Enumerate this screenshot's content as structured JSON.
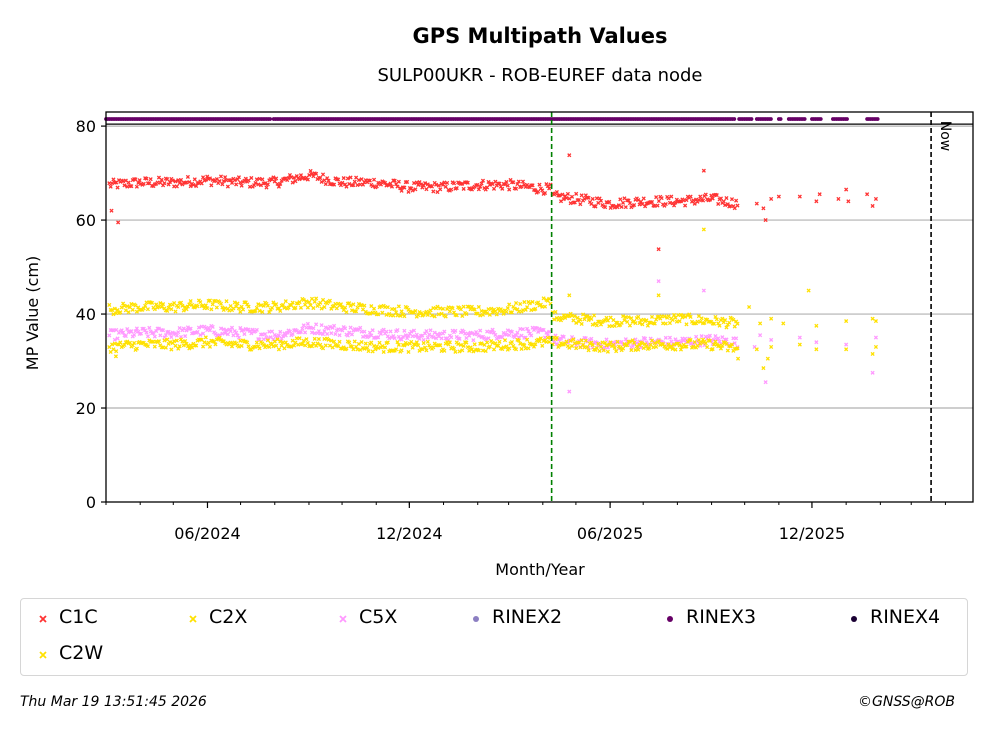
{
  "chart_data": {
    "type": "scatter",
    "title": "GPS Multipath Values",
    "subtitle": "SULP00UKR - ROB-EUREF data node",
    "xlabel": "Month/Year",
    "ylabel": "MP Value (cm)",
    "xlim": [
      "2024-03-01",
      "2026-04-26"
    ],
    "ylim": [
      0,
      83
    ],
    "yticks": [
      0,
      20,
      40,
      60,
      80
    ],
    "xticks": [
      {
        "date": "2024-06-01",
        "label": "06/2024"
      },
      {
        "date": "2024-12-01",
        "label": "12/2024"
      },
      {
        "date": "2025-06-01",
        "label": "06/2025"
      },
      {
        "date": "2025-12-01",
        "label": "12/2025"
      }
    ],
    "grid": "horizontal",
    "legend_position": "bottom",
    "annotations": {
      "now_label": "Now",
      "now_date": "2026-03-19",
      "change_date": "2025-04-09",
      "change_color": "#008000",
      "rinex_band_y": 81.5
    },
    "series": [
      {
        "name": "C1C",
        "color": "#ff3333",
        "marker": "x",
        "segments": [
          {
            "x": [
              "2024-03-04",
              "2024-04-01",
              "2024-05-01",
              "2024-06-01",
              "2024-07-01",
              "2024-08-01",
              "2024-09-01",
              "2024-10-01",
              "2024-11-01",
              "2024-12-01",
              "2025-01-01",
              "2025-02-01",
              "2025-03-01",
              "2025-04-08"
            ],
            "y": [
              67.5,
              68.0,
              68.0,
              68.5,
              68.0,
              68.0,
              69.5,
              68.0,
              68.0,
              67.0,
              67.0,
              67.5,
              67.5,
              66.5
            ]
          },
          {
            "x": [
              "2025-04-10",
              "2025-05-01",
              "2025-06-01",
              "2025-07-01",
              "2025-08-01",
              "2025-09-01",
              "2025-09-25"
            ],
            "y": [
              65.0,
              64.5,
              63.5,
              64.0,
              64.0,
              64.5,
              63.5
            ]
          }
        ],
        "outliers": [
          {
            "x": "2024-03-06",
            "y": 62.0
          },
          {
            "x": "2024-03-12",
            "y": 59.5
          },
          {
            "x": "2025-04-25",
            "y": 73.8
          },
          {
            "x": "2025-07-15",
            "y": 53.8
          },
          {
            "x": "2025-08-25",
            "y": 70.5
          },
          {
            "x": "2025-10-20",
            "y": 60.0
          }
        ],
        "late_points": [
          {
            "x": "2025-10-12",
            "y": 63.5
          },
          {
            "x": "2025-10-18",
            "y": 62.5
          },
          {
            "x": "2025-10-25",
            "y": 64.5
          },
          {
            "x": "2025-11-01",
            "y": 65.0
          },
          {
            "x": "2025-11-20",
            "y": 65.0
          },
          {
            "x": "2025-12-05",
            "y": 64.0
          },
          {
            "x": "2025-12-08",
            "y": 65.5
          },
          {
            "x": "2025-12-25",
            "y": 64.5
          },
          {
            "x": "2026-01-01",
            "y": 66.5
          },
          {
            "x": "2026-01-03",
            "y": 64.0
          },
          {
            "x": "2026-01-20",
            "y": 65.5
          },
          {
            "x": "2026-01-25",
            "y": 63.0
          },
          {
            "x": "2026-01-28",
            "y": 64.5
          }
        ]
      },
      {
        "name": "C2X",
        "color": "#ffe100",
        "marker": "x",
        "segments": [
          {
            "x": [
              "2025-04-10",
              "2025-05-01",
              "2025-06-01",
              "2025-07-01",
              "2025-08-01",
              "2025-09-01",
              "2025-09-25"
            ],
            "y": [
              39.5,
              39.0,
              38.5,
              38.5,
              39.0,
              38.5,
              38.0
            ]
          }
        ],
        "outliers": [
          {
            "x": "2025-04-25",
            "y": 44.0
          },
          {
            "x": "2025-07-15",
            "y": 44.0
          },
          {
            "x": "2025-08-25",
            "y": 58.0
          },
          {
            "x": "2025-11-28",
            "y": 45.0
          }
        ],
        "late_points": [
          {
            "x": "2025-10-05",
            "y": 41.5
          },
          {
            "x": "2025-10-15",
            "y": 38.0
          },
          {
            "x": "2025-10-25",
            "y": 39.0
          },
          {
            "x": "2025-11-05",
            "y": 38.0
          },
          {
            "x": "2025-12-05",
            "y": 37.5
          },
          {
            "x": "2026-01-01",
            "y": 38.5
          },
          {
            "x": "2026-01-25",
            "y": 39.0
          },
          {
            "x": "2026-01-28",
            "y": 38.5
          }
        ]
      },
      {
        "name": "C5X",
        "color": "#ff99ff",
        "marker": "x",
        "segments": [
          {
            "x": [
              "2024-03-04",
              "2024-04-01",
              "2024-05-01",
              "2024-06-01",
              "2024-07-01",
              "2024-08-01",
              "2024-09-01",
              "2024-10-01",
              "2024-11-01",
              "2024-12-01",
              "2025-01-01",
              "2025-02-01",
              "2025-03-01",
              "2025-04-08"
            ],
            "y": [
              35.5,
              36.0,
              36.0,
              36.5,
              36.0,
              35.5,
              37.0,
              36.5,
              36.0,
              35.5,
              35.5,
              35.5,
              36.0,
              36.0
            ]
          },
          {
            "x": [
              "2025-04-10",
              "2025-05-01",
              "2025-06-01",
              "2025-07-01",
              "2025-08-01",
              "2025-09-01",
              "2025-09-25"
            ],
            "y": [
              34.5,
              34.0,
              33.5,
              34.0,
              34.0,
              34.5,
              34.0
            ]
          }
        ],
        "outliers": [
          {
            "x": "2025-04-25",
            "y": 23.5
          },
          {
            "x": "2025-07-15",
            "y": 47.0
          },
          {
            "x": "2025-08-25",
            "y": 45.0
          },
          {
            "x": "2025-10-20",
            "y": 25.5
          },
          {
            "x": "2026-01-25",
            "y": 27.5
          }
        ],
        "late_points": [
          {
            "x": "2025-10-10",
            "y": 33.0
          },
          {
            "x": "2025-10-15",
            "y": 35.5
          },
          {
            "x": "2025-10-25",
            "y": 34.5
          },
          {
            "x": "2025-11-20",
            "y": 35.0
          },
          {
            "x": "2025-12-05",
            "y": 34.0
          },
          {
            "x": "2026-01-01",
            "y": 33.5
          },
          {
            "x": "2026-01-28",
            "y": 35.0
          }
        ]
      },
      {
        "name": "C2W",
        "color": "#ffe100",
        "marker": "x",
        "segments": [
          {
            "x": [
              "2024-03-04",
              "2024-04-01",
              "2024-05-01",
              "2024-06-01",
              "2024-07-01",
              "2024-08-01",
              "2024-09-01",
              "2024-10-01",
              "2024-11-01",
              "2024-12-01",
              "2025-01-01",
              "2025-02-01",
              "2025-03-01",
              "2025-04-08"
            ],
            "y": [
              41.0,
              41.5,
              41.5,
              42.0,
              41.5,
              41.5,
              42.5,
              41.5,
              41.0,
              40.5,
              40.5,
              40.5,
              41.0,
              42.5
            ]
          },
          {
            "x": [
              "2024-03-04",
              "2024-04-01",
              "2024-05-01",
              "2024-06-01",
              "2024-07-01",
              "2024-08-01",
              "2024-09-01",
              "2024-10-01",
              "2024-11-01",
              "2024-12-01",
              "2025-01-01",
              "2025-02-01",
              "2025-03-01",
              "2025-04-08"
            ],
            "y": [
              33.0,
              33.5,
              33.5,
              34.0,
              33.5,
              33.5,
              34.0,
              33.5,
              33.0,
              33.0,
              33.0,
              33.0,
              33.5,
              34.0
            ]
          },
          {
            "x": [
              "2025-04-10",
              "2025-05-01",
              "2025-06-01",
              "2025-07-01",
              "2025-08-01",
              "2025-09-01",
              "2025-09-25"
            ],
            "y": [
              34.0,
              33.5,
              33.0,
              33.5,
              33.5,
              33.5,
              32.5
            ]
          }
        ],
        "outliers": [
          {
            "x": "2024-03-10",
            "y": 31.0
          },
          {
            "x": "2025-09-25",
            "y": 30.5
          },
          {
            "x": "2025-10-18",
            "y": 28.5
          },
          {
            "x": "2025-10-22",
            "y": 30.5
          }
        ],
        "late_points": [
          {
            "x": "2025-10-12",
            "y": 32.5
          },
          {
            "x": "2025-10-25",
            "y": 33.0
          },
          {
            "x": "2025-11-20",
            "y": 33.5
          },
          {
            "x": "2025-12-05",
            "y": 32.5
          },
          {
            "x": "2026-01-01",
            "y": 32.5
          },
          {
            "x": "2026-01-25",
            "y": 31.5
          },
          {
            "x": "2026-01-28",
            "y": 33.0
          }
        ]
      },
      {
        "name": "RINEX2",
        "color": "#8c7fc2",
        "marker": "o"
      },
      {
        "name": "RINEX3",
        "color": "#660066",
        "marker": "o",
        "y": 81.5,
        "ranges": [
          [
            "2024-03-01",
            "2024-07-28"
          ],
          [
            "2024-07-31",
            "2025-09-23"
          ],
          [
            "2025-09-26",
            "2025-10-08"
          ],
          [
            "2025-10-12",
            "2025-10-26"
          ],
          [
            "2025-11-01",
            "2025-11-03"
          ],
          [
            "2025-11-10",
            "2025-11-25"
          ],
          [
            "2025-12-01",
            "2025-12-10"
          ],
          [
            "2025-12-20",
            "2026-01-02"
          ],
          [
            "2026-01-20",
            "2026-01-30"
          ]
        ]
      },
      {
        "name": "RINEX4",
        "color": "#1a0033",
        "marker": "o"
      }
    ]
  },
  "footer": {
    "timestamp": "Thu Mar 19 13:51:45 2026",
    "credit": "©GNSS@ROB"
  }
}
